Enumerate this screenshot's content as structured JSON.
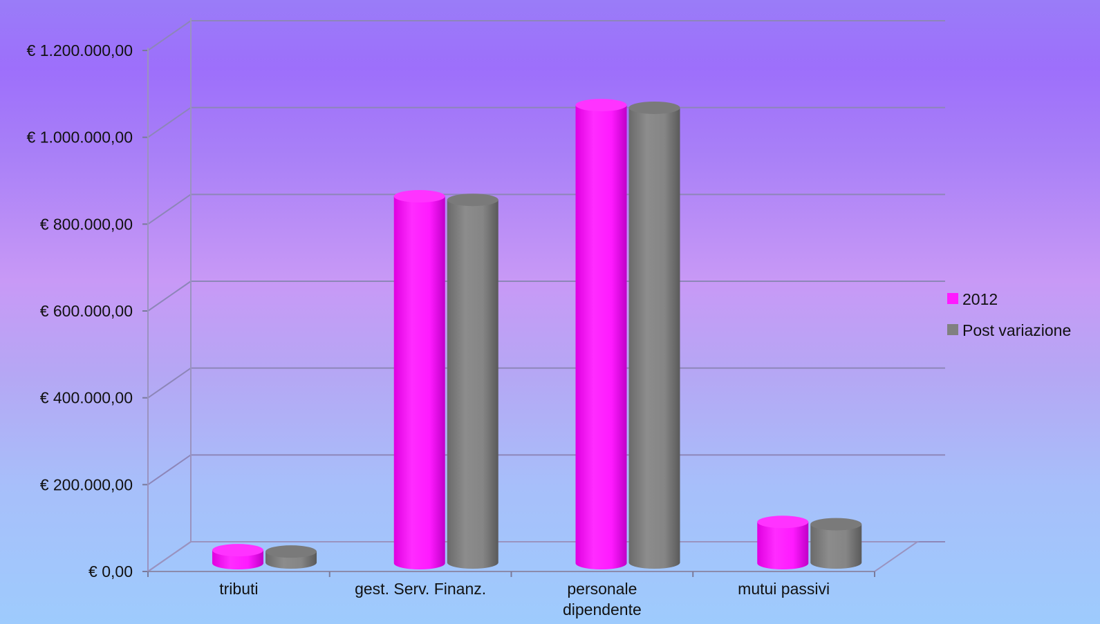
{
  "chart_data": {
    "type": "bar",
    "style": "3d-cylinder",
    "categories": [
      [
        "tributi"
      ],
      [
        "gest. Serv. Finanz."
      ],
      [
        "personale",
        "dipendente"
      ],
      [
        "mutui passivi"
      ]
    ],
    "series": [
      {
        "name": "2012",
        "color": "#ff1aff",
        "values": [
          30000,
          845000,
          1055000,
          95000
        ]
      },
      {
        "name": "Post variazione",
        "color": "#808080",
        "values": [
          30000,
          840000,
          1052000,
          93000
        ]
      }
    ],
    "yticks": [
      "€ 0,00",
      "€ 200.000,00",
      "€ 400.000,00",
      "€ 600.000,00",
      "€ 800.000,00",
      "€ 1.000.000,00",
      "€ 1.200.000,00"
    ],
    "ylim": [
      0,
      1200000
    ],
    "grid": true,
    "legend_position": "right"
  }
}
